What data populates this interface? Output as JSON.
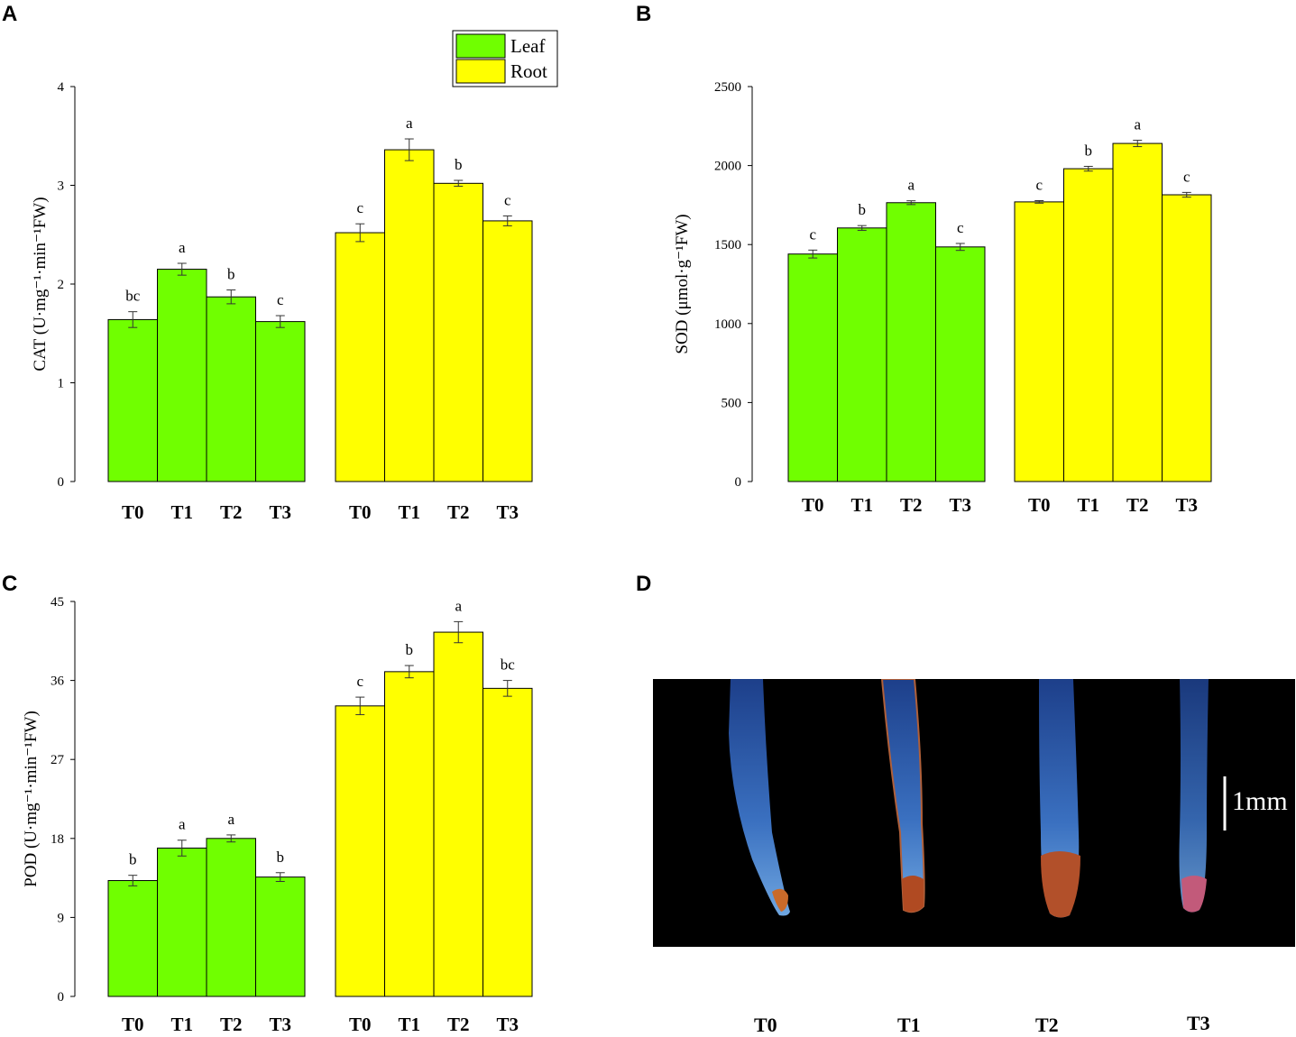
{
  "panels": [
    {
      "id": "A",
      "label": "A"
    },
    {
      "id": "B",
      "label": "B"
    },
    {
      "id": "C",
      "label": "C"
    },
    {
      "id": "D",
      "label": "D"
    }
  ],
  "colors": {
    "leaf": "#70ff00",
    "root": "#ffff00",
    "stroke": "#000000",
    "photo_bg": "#000000"
  },
  "legend": {
    "leaf": "Leaf",
    "root": "Root"
  },
  "chart_data": [
    {
      "id": "A",
      "type": "bar",
      "ylabel": "CAT (U·mg⁻¹·min⁻¹FW)",
      "ylim": [
        0,
        4
      ],
      "yticks": [
        0,
        1,
        2,
        3,
        4
      ],
      "categories": [
        "T0",
        "T1",
        "T2",
        "T3"
      ],
      "series": [
        {
          "name": "Leaf",
          "values": [
            1.64,
            2.15,
            1.87,
            1.62
          ],
          "errors": [
            0.08,
            0.06,
            0.07,
            0.06
          ],
          "letters": [
            "bc",
            "a",
            "b",
            "c"
          ]
        },
        {
          "name": "Root",
          "values": [
            2.52,
            3.36,
            3.02,
            2.64
          ],
          "errors": [
            0.09,
            0.11,
            0.03,
            0.05
          ],
          "letters": [
            "c",
            "a",
            "b",
            "c"
          ]
        }
      ],
      "legend": "top-right"
    },
    {
      "id": "B",
      "type": "bar",
      "ylabel": "SOD (μmol·g⁻¹FW)",
      "ylim": [
        0,
        2500
      ],
      "yticks": [
        0,
        500,
        1000,
        1500,
        2000,
        2500
      ],
      "categories": [
        "T0",
        "T1",
        "T2",
        "T3"
      ],
      "series": [
        {
          "name": "Leaf",
          "values": [
            1440,
            1605,
            1765,
            1485
          ],
          "errors": [
            25,
            15,
            12,
            22
          ],
          "letters": [
            "c",
            "b",
            "a",
            "c"
          ]
        },
        {
          "name": "Root",
          "values": [
            1770,
            1980,
            2140,
            1815
          ],
          "errors": [
            8,
            15,
            20,
            15
          ],
          "letters": [
            "c",
            "b",
            "a",
            "c"
          ]
        }
      ]
    },
    {
      "id": "C",
      "type": "bar",
      "ylabel": "POD (U·mg⁻¹·min⁻¹FW)",
      "ylim": [
        0,
        45
      ],
      "yticks": [
        0,
        9,
        18,
        27,
        36,
        45
      ],
      "categories": [
        "T0",
        "T1",
        "T2",
        "T3"
      ],
      "series": [
        {
          "name": "Leaf",
          "values": [
            13.2,
            16.9,
            18.0,
            13.6
          ],
          "errors": [
            0.6,
            0.9,
            0.4,
            0.5
          ],
          "letters": [
            "b",
            "a",
            "a",
            "b"
          ]
        },
        {
          "name": "Root",
          "values": [
            33.1,
            37.0,
            41.5,
            35.1
          ],
          "errors": [
            1.0,
            0.7,
            1.2,
            0.9
          ],
          "letters": [
            "c",
            "b",
            "a",
            "bc"
          ]
        }
      ]
    }
  ],
  "photo": {
    "labels": [
      "T0",
      "T1",
      "T2",
      "T3"
    ],
    "scale_bar": "1mm"
  }
}
